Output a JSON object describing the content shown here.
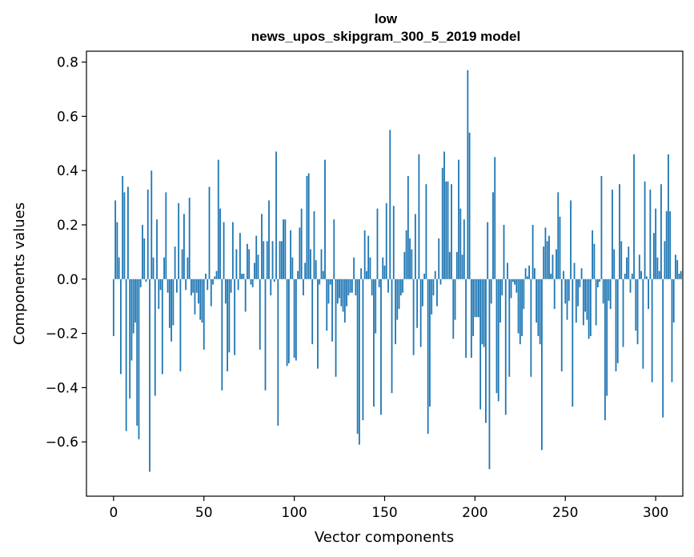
{
  "chart_data": {
    "type": "bar",
    "title": "low",
    "subtitle": "news_upos_skipgram_300_5_2019 model",
    "xlabel": "Vector components",
    "ylabel": "Components values",
    "xlim": [
      -15,
      315
    ],
    "ylim": [
      -0.8,
      0.84
    ],
    "xticks": [
      0,
      50,
      100,
      150,
      200,
      250,
      300
    ],
    "xtick_labels": [
      "0",
      "50",
      "100",
      "150",
      "200",
      "250",
      "300"
    ],
    "yticks": [
      -0.6,
      -0.4,
      -0.2,
      0.0,
      0.2,
      0.4,
      0.6,
      0.8
    ],
    "ytick_labels": [
      "−0.6",
      "−0.4",
      "−0.2",
      "0.0",
      "0.2",
      "0.4",
      "0.6",
      "0.8"
    ],
    "bar_color": "#1f77b4",
    "values": [
      -0.21,
      0.29,
      0.21,
      0.08,
      -0.35,
      0.38,
      0.32,
      -0.56,
      0.34,
      -0.44,
      -0.3,
      -0.2,
      -0.16,
      -0.54,
      -0.59,
      -0.03,
      0.2,
      0.15,
      -0.01,
      0.33,
      -0.71,
      0.4,
      0.08,
      -0.43,
      0.22,
      -0.11,
      -0.04,
      -0.35,
      0.08,
      0.32,
      -0.05,
      -0.18,
      -0.23,
      -0.17,
      0.12,
      -0.05,
      0.28,
      -0.34,
      0.11,
      0.24,
      -0.04,
      0.08,
      0.3,
      -0.06,
      -0.05,
      -0.13,
      -0.05,
      -0.09,
      -0.15,
      -0.16,
      -0.26,
      0.02,
      -0.04,
      0.34,
      -0.1,
      -0.02,
      0.01,
      0.03,
      0.44,
      0.26,
      -0.41,
      0.21,
      -0.09,
      -0.34,
      -0.27,
      -0.05,
      0.21,
      -0.28,
      0.11,
      -0.04,
      0.17,
      0.02,
      0.02,
      -0.12,
      0.13,
      0.11,
      -0.02,
      -0.03,
      0.06,
      0.16,
      0.09,
      -0.26,
      0.24,
      0.14,
      -0.41,
      0.14,
      0.29,
      -0.06,
      0.14,
      -0.01,
      0.47,
      -0.54,
      0.14,
      0.14,
      0.22,
      0.22,
      -0.32,
      -0.31,
      0.18,
      0.08,
      -0.29,
      -0.3,
      0.03,
      0.19,
      0.26,
      -0.06,
      0.06,
      0.38,
      0.39,
      0.11,
      -0.24,
      0.25,
      0.07,
      -0.33,
      -0.02,
      0.11,
      0.03,
      0.44,
      -0.19,
      -0.09,
      -0.02,
      -0.23,
      0.22,
      -0.36,
      -0.09,
      -0.07,
      -0.1,
      -0.12,
      -0.16,
      -0.1,
      -0.06,
      -0.05,
      -0.05,
      0.08,
      -0.06,
      -0.57,
      -0.61,
      0.04,
      -0.52,
      0.18,
      0.03,
      0.16,
      0.08,
      -0.06,
      -0.47,
      -0.2,
      0.26,
      -0.03,
      -0.5,
      0.08,
      0.05,
      0.28,
      -0.05,
      0.55,
      -0.42,
      0.27,
      -0.24,
      -0.15,
      -0.11,
      -0.06,
      -0.05,
      0.1,
      0.18,
      0.38,
      0.15,
      0.11,
      -0.28,
      0.24,
      -0.18,
      0.46,
      -0.25,
      -0.1,
      0.02,
      0.35,
      -0.57,
      -0.47,
      -0.13,
      -0.06,
      0.03,
      -0.1,
      0.15,
      -0.02,
      0.41,
      0.47,
      0.36,
      0.36,
      0.1,
      0.35,
      -0.22,
      -0.15,
      0.1,
      0.44,
      0.26,
      0.09,
      0.22,
      -0.29,
      0.77,
      0.54,
      -0.29,
      -0.21,
      -0.14,
      -0.14,
      -0.14,
      -0.48,
      -0.24,
      -0.25,
      -0.53,
      0.21,
      -0.7,
      -0.09,
      0.32,
      0.45,
      -0.42,
      -0.45,
      -0.16,
      -0.06,
      0.2,
      -0.5,
      0.06,
      -0.36,
      -0.07,
      -0.01,
      -0.02,
      -0.05,
      -0.2,
      -0.24,
      -0.21,
      -0.11,
      0.04,
      0.01,
      0.05,
      -0.36,
      0.2,
      0.04,
      -0.16,
      -0.21,
      -0.24,
      -0.63,
      0.12,
      0.19,
      0.14,
      0.16,
      0.02,
      0.09,
      -0.11,
      0.11,
      0.32,
      0.23,
      -0.34,
      0.03,
      -0.09,
      -0.15,
      -0.08,
      0.29,
      -0.47,
      0.06,
      -0.16,
      -0.1,
      -0.03,
      0.04,
      -0.17,
      -0.12,
      -0.15,
      -0.22,
      -0.21,
      0.18,
      0.13,
      -0.17,
      -0.03,
      -0.01,
      0.38,
      -0.09,
      -0.52,
      -0.43,
      -0.08,
      -0.11,
      0.33,
      0.11,
      -0.34,
      -0.31,
      0.35,
      0.14,
      -0.25,
      0.02,
      0.08,
      0.12,
      -0.05,
      0.02,
      0.46,
      -0.19,
      -0.24,
      0.09,
      0.03,
      -0.33,
      0.36,
      0.01,
      -0.11,
      0.33,
      -0.38,
      0.17,
      0.26,
      0.08,
      0.03,
      0.35,
      -0.51,
      0.14,
      0.25,
      0.46,
      0.25,
      -0.38,
      -0.16,
      0.09,
      0.07,
      0.02,
      0.03
    ]
  }
}
